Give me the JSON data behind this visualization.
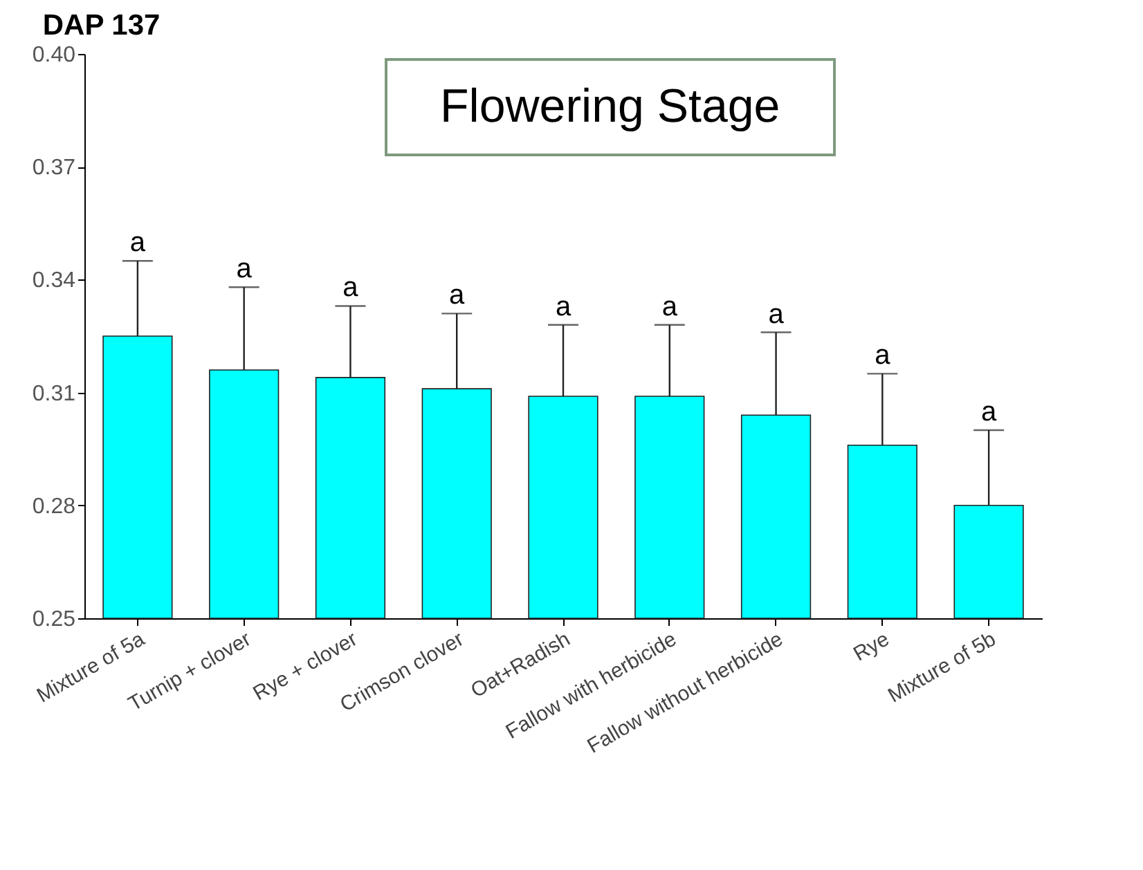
{
  "chart_data": {
    "type": "bar",
    "title": "DAP 137",
    "categories": [
      "Mixture of 5a",
      "Turnip + clover",
      "Rye + clover",
      "Crimson clover",
      "Oat+Radish",
      "Fallow with herbicide",
      "Fallow without herbicide",
      "Rye",
      "Mixture of 5b"
    ],
    "values": [
      0.325,
      0.316,
      0.314,
      0.311,
      0.309,
      0.309,
      0.304,
      0.296,
      0.28
    ],
    "errors": [
      [
        0.325,
        0.345
      ],
      [
        0.316,
        0.338
      ],
      [
        0.314,
        0.333
      ],
      [
        0.311,
        0.331
      ],
      [
        0.309,
        0.328
      ],
      [
        0.309,
        0.328
      ],
      [
        0.304,
        0.326
      ],
      [
        0.296,
        0.315
      ],
      [
        0.28,
        0.3
      ]
    ],
    "color": "#00ffff",
    "ylim": [
      0.25,
      0.4
    ],
    "yticks": [
      {
        "value": 0.25,
        "label": "0.25"
      },
      {
        "value": 0.28,
        "label": "0.28"
      },
      {
        "value": 0.31,
        "label": "0.31"
      },
      {
        "value": 0.34,
        "label": "0.34"
      },
      {
        "value": 0.37,
        "label": "0.37"
      },
      {
        "value": 0.4,
        "label": "0.40"
      }
    ],
    "grid": false,
    "annotations": [
      "Flowering Stage",
      "a",
      "a",
      "a",
      "a",
      "a",
      "a",
      "a",
      "a",
      "a"
    ]
  }
}
